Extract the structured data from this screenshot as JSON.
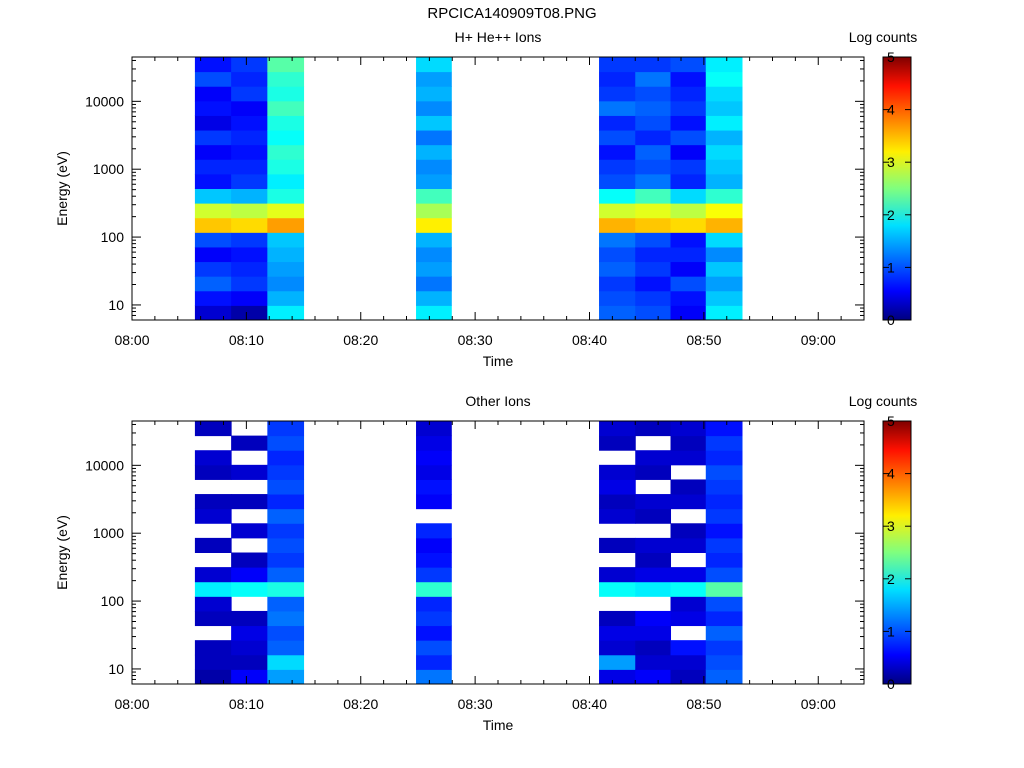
{
  "figure_title": "RPCICA140909T08.PNG",
  "chart_data": [
    {
      "type": "heatmap",
      "title": "H+ He++ Ions",
      "xlabel": "Time",
      "ylabel": "Energy (eV)",
      "y_scale": "log",
      "ylim": [
        6,
        45000
      ],
      "xlim_minutes_after_08_00": [
        0,
        64
      ],
      "x_tick_labels": [
        "08:00",
        "08:10",
        "08:20",
        "08:30",
        "08:40",
        "08:50",
        "09:00"
      ],
      "y_tick_values": [
        10,
        100,
        1000,
        10000
      ],
      "y_tick_labels": [
        "10",
        "100",
        "1000",
        "10000"
      ],
      "colorbar": {
        "label": "Log counts",
        "range": [
          0,
          5
        ],
        "tick_labels": [
          "0",
          "1",
          "2",
          "3",
          "4",
          "5"
        ],
        "colormap": "jet"
      },
      "columns": [
        {
          "start": "08:05:30",
          "end": "08:08:40",
          "levels": [
            0.4,
            0.7,
            1.1,
            0.9,
            0.6,
            1.0,
            3.4,
            2.9,
            1.6,
            0.7,
            0.8,
            0.6,
            0.9,
            0.5,
            0.7,
            0.6,
            1.0,
            0.7
          ]
        },
        {
          "start": "08:08:40",
          "end": "08:11:50",
          "levels": [
            0.2,
            0.6,
            0.9,
            0.8,
            0.7,
            0.9,
            3.3,
            2.8,
            1.5,
            0.9,
            0.8,
            0.7,
            0.8,
            0.7,
            0.6,
            0.9,
            0.8,
            0.9
          ]
        },
        {
          "start": "08:11:50",
          "end": "08:15:00",
          "levels": [
            1.8,
            1.5,
            1.3,
            1.4,
            1.5,
            1.6,
            3.6,
            3.0,
            2.0,
            1.8,
            2.0,
            2.1,
            1.9,
            2.0,
            2.2,
            2.0,
            2.1,
            2.3
          ]
        },
        {
          "start": "08:24:50",
          "end": "08:27:55",
          "levels": [
            1.8,
            1.5,
            1.2,
            1.4,
            1.3,
            1.5,
            3.2,
            2.7,
            2.2,
            1.4,
            1.3,
            1.5,
            1.2,
            1.6,
            1.3,
            1.5,
            1.4,
            1.7
          ]
        },
        {
          "start": "08:40:50",
          "end": "08:44:00",
          "levels": [
            1.1,
            1.0,
            0.9,
            1.1,
            1.0,
            1.2,
            3.5,
            2.9,
            1.9,
            1.0,
            0.9,
            0.7,
            1.0,
            0.8,
            1.2,
            0.9,
            0.8,
            0.9
          ]
        },
        {
          "start": "08:44:00",
          "end": "08:47:05",
          "levels": [
            1.0,
            0.9,
            0.7,
            0.9,
            0.8,
            1.0,
            3.4,
            3.0,
            2.2,
            1.2,
            1.0,
            1.1,
            0.8,
            1.0,
            1.1,
            1.0,
            1.2,
            0.9
          ]
        },
        {
          "start": "08:47:05",
          "end": "08:50:10",
          "levels": [
            0.6,
            0.7,
            1.0,
            0.6,
            0.8,
            0.7,
            3.3,
            2.8,
            1.7,
            0.8,
            0.9,
            0.6,
            1.0,
            0.7,
            0.9,
            0.8,
            0.7,
            1.0
          ]
        },
        {
          "start": "08:50:10",
          "end": "08:53:20",
          "levels": [
            1.8,
            1.6,
            1.4,
            1.6,
            1.3,
            1.7,
            3.5,
            3.1,
            2.1,
            1.5,
            1.6,
            1.7,
            1.5,
            1.8,
            1.6,
            1.7,
            1.9,
            1.8
          ]
        }
      ]
    },
    {
      "type": "heatmap",
      "title": "Other Ions",
      "xlabel": "Time",
      "ylabel": "Energy (eV)",
      "y_scale": "log",
      "ylim": [
        6,
        45000
      ],
      "xlim_minutes_after_08_00": [
        0,
        64
      ],
      "x_tick_labels": [
        "08:00",
        "08:10",
        "08:20",
        "08:30",
        "08:40",
        "08:50",
        "09:00"
      ],
      "y_tick_values": [
        10,
        100,
        1000,
        10000
      ],
      "y_tick_labels": [
        "10",
        "100",
        "1000",
        "10000"
      ],
      "colorbar": {
        "label": "Log counts",
        "range": [
          0,
          5
        ],
        "tick_labels": [
          "0",
          "1",
          "2",
          "3",
          "4",
          "5"
        ],
        "colormap": "jet"
      },
      "columns": [
        {
          "start": "08:05:30",
          "end": "08:08:40",
          "levels": [
            0.2,
            0.3,
            0.3,
            null,
            0.3,
            0.4,
            1.8,
            0.4,
            null,
            0.3,
            null,
            0.4,
            0.3,
            null,
            0.3,
            0.4,
            null,
            0.3
          ]
        },
        {
          "start": "08:08:40",
          "end": "08:11:50",
          "levels": [
            0.6,
            0.3,
            0.4,
            0.5,
            0.3,
            null,
            1.9,
            0.6,
            0.3,
            null,
            0.4,
            null,
            0.3,
            null,
            0.4,
            null,
            0.3,
            null
          ]
        },
        {
          "start": "08:11:50",
          "end": "08:15:00",
          "levels": [
            1.4,
            1.7,
            1.1,
            1.0,
            1.2,
            1.1,
            2.0,
            1.1,
            0.9,
            1.0,
            0.9,
            1.1,
            0.8,
            1.0,
            0.9,
            0.8,
            1.0,
            0.9
          ]
        },
        {
          "start": "08:24:50",
          "end": "08:27:55",
          "levels": [
            1.2,
            0.8,
            1.0,
            0.7,
            0.9,
            0.8,
            2.1,
            0.9,
            0.7,
            0.6,
            0.8,
            null,
            0.6,
            0.7,
            0.5,
            0.6,
            0.5,
            0.4
          ]
        },
        {
          "start": "08:40:50",
          "end": "08:44:00",
          "levels": [
            0.5,
            1.4,
            0.4,
            0.5,
            0.3,
            null,
            1.9,
            0.4,
            null,
            0.3,
            null,
            0.4,
            0.3,
            0.5,
            0.4,
            null,
            0.3,
            0.4
          ]
        },
        {
          "start": "08:44:00",
          "end": "08:47:05",
          "levels": [
            0.6,
            0.4,
            0.3,
            0.5,
            0.6,
            null,
            1.8,
            0.5,
            0.3,
            0.4,
            null,
            0.3,
            0.4,
            null,
            0.3,
            0.4,
            null,
            0.3
          ]
        },
        {
          "start": "08:47:05",
          "end": "08:50:10",
          "levels": [
            0.3,
            0.4,
            0.7,
            null,
            0.5,
            0.4,
            1.9,
            0.5,
            null,
            0.4,
            0.3,
            null,
            0.4,
            0.3,
            null,
            0.4,
            0.3,
            0.4
          ]
        },
        {
          "start": "08:50:10",
          "end": "08:53:20",
          "levels": [
            1.1,
            1.0,
            0.9,
            1.1,
            0.8,
            1.0,
            2.3,
            1.0,
            0.8,
            0.9,
            0.7,
            0.9,
            0.8,
            0.9,
            1.0,
            0.8,
            0.9,
            0.7
          ]
        }
      ]
    }
  ]
}
